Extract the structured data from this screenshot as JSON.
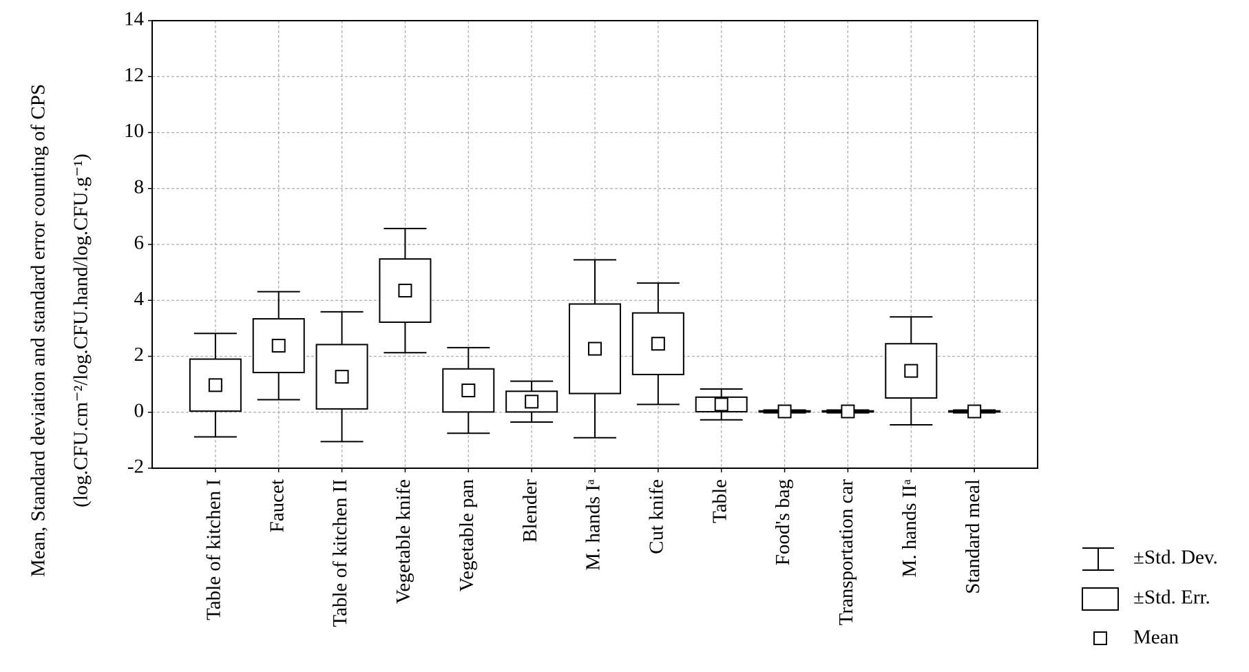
{
  "chart_data": {
    "type": "box",
    "y_label": [
      "Mean, Standard deviation and standard error counting of CPS",
      "(log.CFU.cm⁻²/log.CFU.hand/log.CFU.g⁻¹)"
    ],
    "categories": [
      "Table of kitchen I",
      "Faucet",
      "Table of kitchen II",
      "Vegetable knife",
      "Vegetable pan",
      "Blender",
      "M. hands Iᵃ",
      "Cut knife",
      "Table",
      "Food's bag",
      "Transportation car",
      "M. hands IIᵃ",
      "Standard meal"
    ],
    "mean": [
      0.97,
      2.38,
      1.27,
      4.35,
      0.78,
      0.38,
      2.27,
      2.45,
      0.28,
      0.03,
      0.03,
      1.48,
      0.03
    ],
    "se": [
      0.93,
      0.96,
      1.15,
      1.13,
      0.77,
      0.37,
      1.6,
      1.1,
      0.26,
      0.02,
      0.02,
      0.97,
      0.02
    ],
    "sd": [
      1.85,
      1.93,
      2.32,
      2.22,
      1.53,
      0.73,
      3.18,
      2.17,
      0.55,
      0.05,
      0.05,
      1.93,
      0.05
    ],
    "legend": {
      "sd": "±Std. Dev.",
      "se": "±Std. Err.",
      "mean": "Mean"
    },
    "ylim": [
      -2,
      14
    ],
    "yticks": [
      -2,
      0,
      2,
      4,
      6,
      8,
      10,
      12,
      14
    ],
    "grid": true,
    "color": "#000000"
  }
}
